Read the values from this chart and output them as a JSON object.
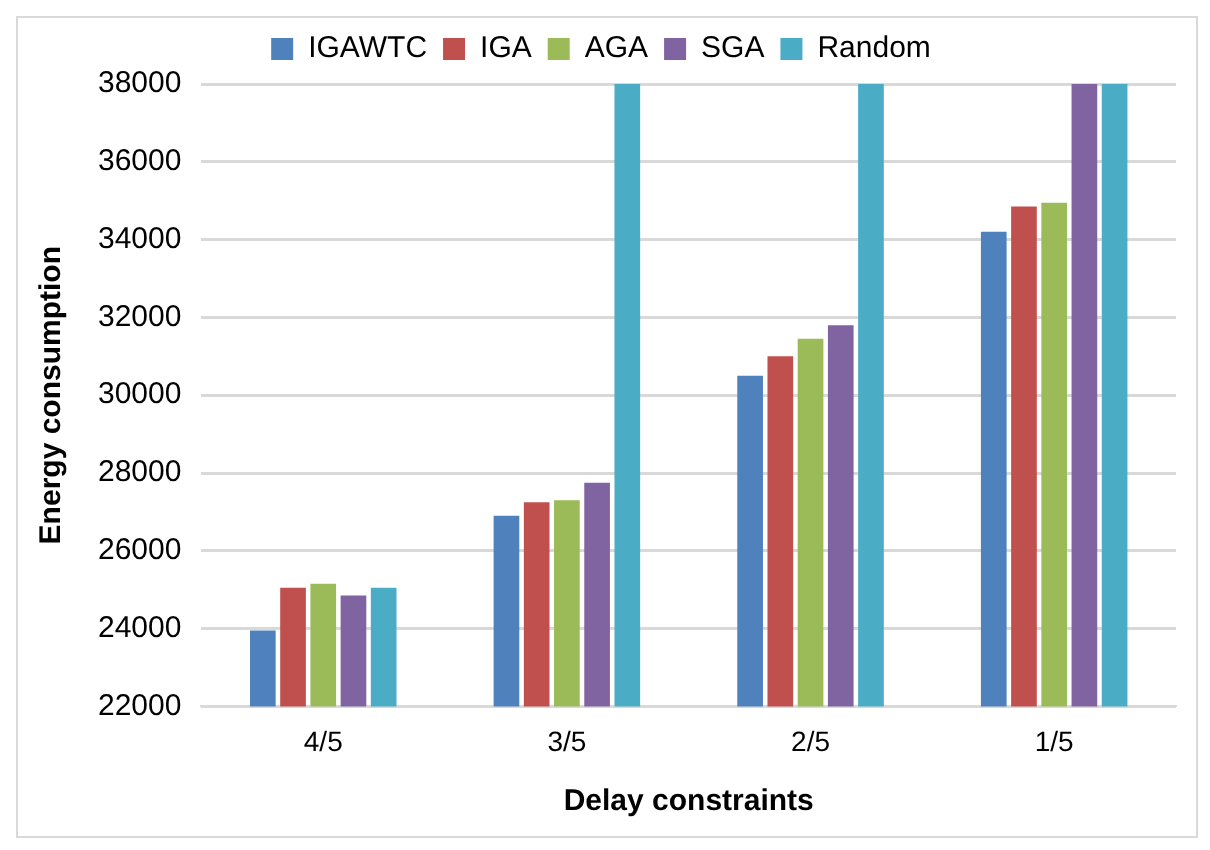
{
  "chart_data": {
    "type": "bar",
    "xlabel": "Delay constraints",
    "ylabel": "Energy consumption",
    "categories": [
      "4/5",
      "3/5",
      "2/5",
      "1/5"
    ],
    "series": [
      {
        "name": "IGAWTC",
        "color": "#4f81bd",
        "values": [
          23950,
          26900,
          30500,
          34200
        ]
      },
      {
        "name": "IGA",
        "color": "#c0504d",
        "values": [
          25050,
          27250,
          31000,
          34850
        ]
      },
      {
        "name": "AGA",
        "color": "#9bbb59",
        "values": [
          25150,
          27300,
          31450,
          34950
        ]
      },
      {
        "name": "SGA",
        "color": "#8064a2",
        "values": [
          24850,
          27750,
          31800,
          38000
        ]
      },
      {
        "name": "Random",
        "color": "#4bacc6",
        "values": [
          25050,
          38000,
          38000,
          38000
        ]
      }
    ],
    "ylim": [
      22000,
      38000
    ],
    "yticks": [
      22000,
      24000,
      26000,
      28000,
      30000,
      32000,
      34000,
      36000,
      38000
    ],
    "grid": "y",
    "legend": "top"
  }
}
